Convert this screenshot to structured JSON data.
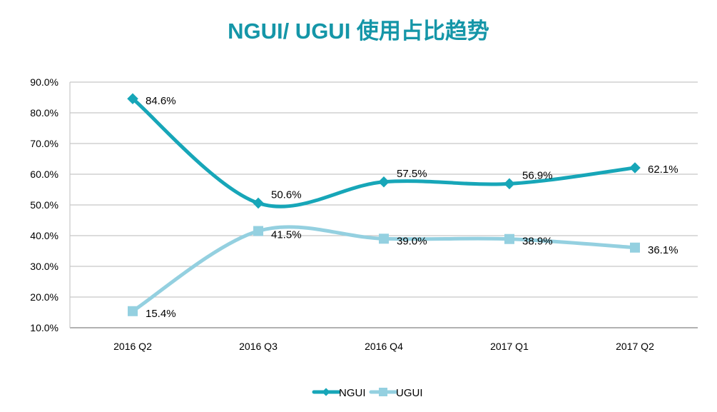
{
  "chart_data": {
    "type": "line",
    "title": "NGUI/ UGUI 使用占比趋势",
    "xlabel": "",
    "ylabel": "",
    "categories": [
      "2016 Q2",
      "2016 Q3",
      "2016 Q4",
      "2017 Q1",
      "2017 Q2"
    ],
    "ylim": [
      10,
      90
    ],
    "yticks": [
      "10.0%",
      "20.0%",
      "30.0%",
      "40.0%",
      "50.0%",
      "60.0%",
      "70.0%",
      "80.0%",
      "90.0%"
    ],
    "grid": true,
    "legend_position": "bottom",
    "series": [
      {
        "name": "NGUI",
        "color": "#17a6b8",
        "marker": "diamond",
        "values": [
          84.6,
          50.6,
          57.5,
          56.9,
          62.1
        ],
        "labels": [
          "84.6%",
          "50.6%",
          "57.5%",
          "56.9%",
          "62.1%"
        ]
      },
      {
        "name": "UGUI",
        "color": "#94d0e0",
        "marker": "square",
        "values": [
          15.4,
          41.5,
          39.0,
          38.9,
          36.1
        ],
        "labels": [
          "15.4%",
          "41.5%",
          "39.0%",
          "38.9%",
          "36.1%"
        ]
      }
    ]
  }
}
